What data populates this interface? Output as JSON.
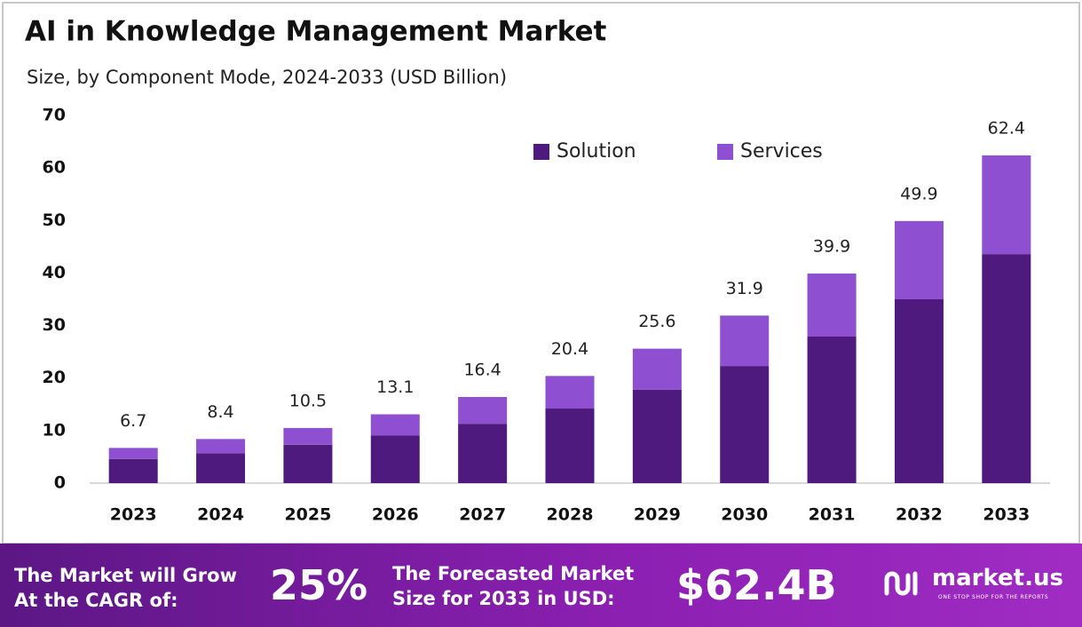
{
  "chart_data": {
    "type": "stacked_bar",
    "title": "AI in Knowledge Management Market",
    "subtitle": "Size, by Component Mode, 2024-2033 (USD Billion)",
    "categories": [
      "2023",
      "2024",
      "2025",
      "2026",
      "2027",
      "2028",
      "2029",
      "2030",
      "2031",
      "2032",
      "2033"
    ],
    "series": [
      {
        "name": "Solution",
        "color": "#4e1a7e",
        "values": [
          4.6,
          5.7,
          7.3,
          9.1,
          11.3,
          14.2,
          17.8,
          22.3,
          27.9,
          35.0,
          43.6
        ]
      },
      {
        "name": "Services",
        "color": "#8e4fd0",
        "values": [
          2.1,
          2.7,
          3.2,
          4.0,
          5.1,
          6.2,
          7.8,
          9.6,
          12.0,
          14.9,
          18.8
        ]
      }
    ],
    "totals": [
      6.7,
      8.4,
      10.5,
      13.1,
      16.4,
      20.4,
      25.6,
      31.9,
      39.9,
      49.9,
      62.4
    ],
    "ylim": [
      0,
      70
    ],
    "yticks": [
      0,
      10,
      20,
      30,
      40,
      50,
      60,
      70
    ],
    "grid": false,
    "legend": "top-right"
  },
  "footer": {
    "cagr_text": "The Market will Grow At the CAGR of:",
    "cagr_value": "25%",
    "forecast_text": "The Forecasted Market Size for 2033 in USD:",
    "forecast_value": "$62.4B",
    "brand": "market.us",
    "tagline": "ONE STOP SHOP FOR THE REPORTS"
  }
}
